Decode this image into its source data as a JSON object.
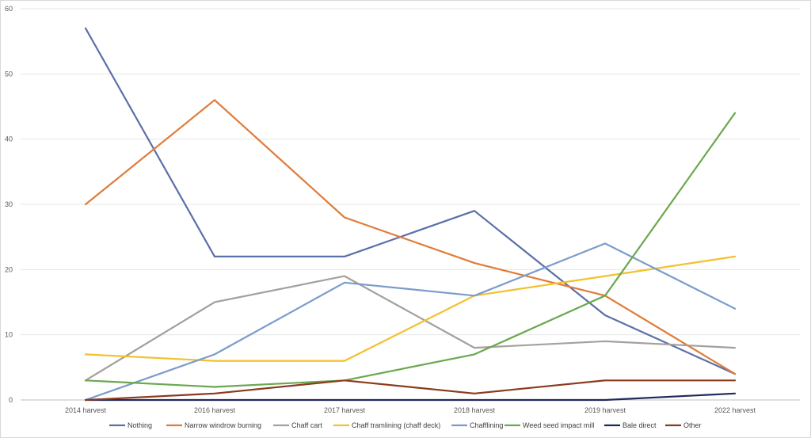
{
  "chart_data": {
    "type": "line",
    "title": "",
    "xlabel": "",
    "ylabel": "",
    "categories": [
      "2014 harvest",
      "2016 harvest",
      "2017 harvest",
      "2018 harvest",
      "2019 harvest",
      "2022 harvest"
    ],
    "ylim": [
      0,
      60
    ],
    "yticks": [
      0,
      10,
      20,
      30,
      40,
      50,
      60
    ],
    "grid": true,
    "legend_position": "bottom",
    "series": [
      {
        "name": "Nothing",
        "color": "#5b6fa8",
        "values": [
          57,
          22,
          22,
          29,
          13,
          4
        ]
      },
      {
        "name": "Narrow windrow burning",
        "color": "#e07b39",
        "values": [
          30,
          46,
          28,
          21,
          16,
          4
        ]
      },
      {
        "name": "Chaff cart",
        "color": "#a5a09b",
        "values": [
          3,
          15,
          19,
          8,
          9,
          8
        ]
      },
      {
        "name": "Chaff tramlining (chaff deck)",
        "color": "#f2c12e",
        "values": [
          7,
          6,
          6,
          16,
          19,
          22
        ]
      },
      {
        "name": "Chafflining",
        "color": "#7b9ccb",
        "values": [
          0,
          7,
          18,
          16,
          24,
          14
        ]
      },
      {
        "name": "Weed seed impact mill",
        "color": "#6aa84f",
        "values": [
          3,
          2,
          3,
          7,
          16,
          44
        ]
      },
      {
        "name": "Bale direct",
        "color": "#1f2a5c",
        "values": [
          0,
          0,
          0,
          0,
          0,
          1
        ]
      },
      {
        "name": "Other",
        "color": "#8b3a1e",
        "values": [
          0,
          1,
          3,
          1,
          3,
          3
        ]
      }
    ]
  }
}
